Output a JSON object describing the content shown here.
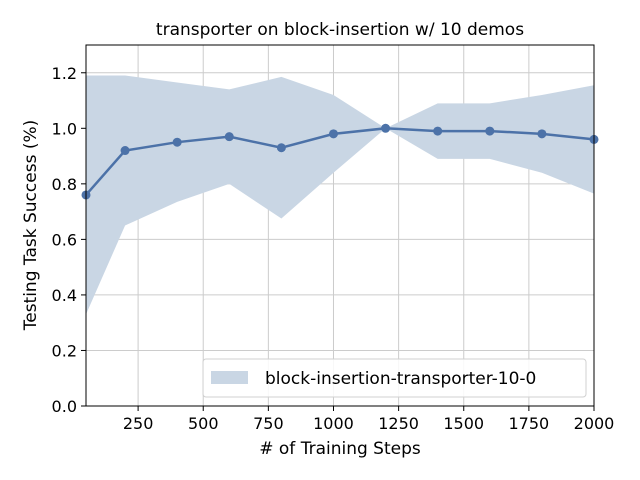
{
  "chart_data": {
    "type": "line",
    "title": "transporter on block-insertion w/ 10 demos",
    "xlabel": "# of Training Steps",
    "ylabel": "Testing Task Success (%)",
    "xlim": [
      50,
      2000
    ],
    "ylim": [
      0.0,
      1.3
    ],
    "x_ticks": [
      250,
      500,
      750,
      1000,
      1250,
      1500,
      1750,
      2000
    ],
    "x_tick_labels": [
      "250",
      "500",
      "750",
      "1000",
      "1250",
      "1500",
      "1750",
      "2000"
    ],
    "y_ticks": [
      0.0,
      0.2,
      0.4,
      0.6,
      0.8,
      1.0,
      1.2
    ],
    "y_tick_labels": [
      "0.0",
      "0.2",
      "0.4",
      "0.6",
      "0.8",
      "1.0",
      "1.2"
    ],
    "grid": true,
    "legend_position": "lower-right",
    "legend_label": "block-insertion-transporter-10-0",
    "series": [
      {
        "x": [
          50,
          200,
          400,
          600,
          800,
          1000,
          1200,
          1400,
          1600,
          1800,
          2000
        ],
        "values": [
          0.76,
          0.92,
          0.95,
          0.97,
          0.93,
          0.98,
          1.0,
          0.99,
          0.99,
          0.98,
          0.96
        ],
        "upper": [
          1.19,
          1.19,
          1.165,
          1.14,
          1.185,
          1.12,
          1.0,
          1.09,
          1.09,
          1.12,
          1.155
        ],
        "lower": [
          0.33,
          0.65,
          0.735,
          0.8,
          0.675,
          0.84,
          1.0,
          0.89,
          0.89,
          0.84,
          0.765
        ],
        "line_color": "#4c72a8",
        "band_color": "#c9d6e4"
      }
    ]
  }
}
